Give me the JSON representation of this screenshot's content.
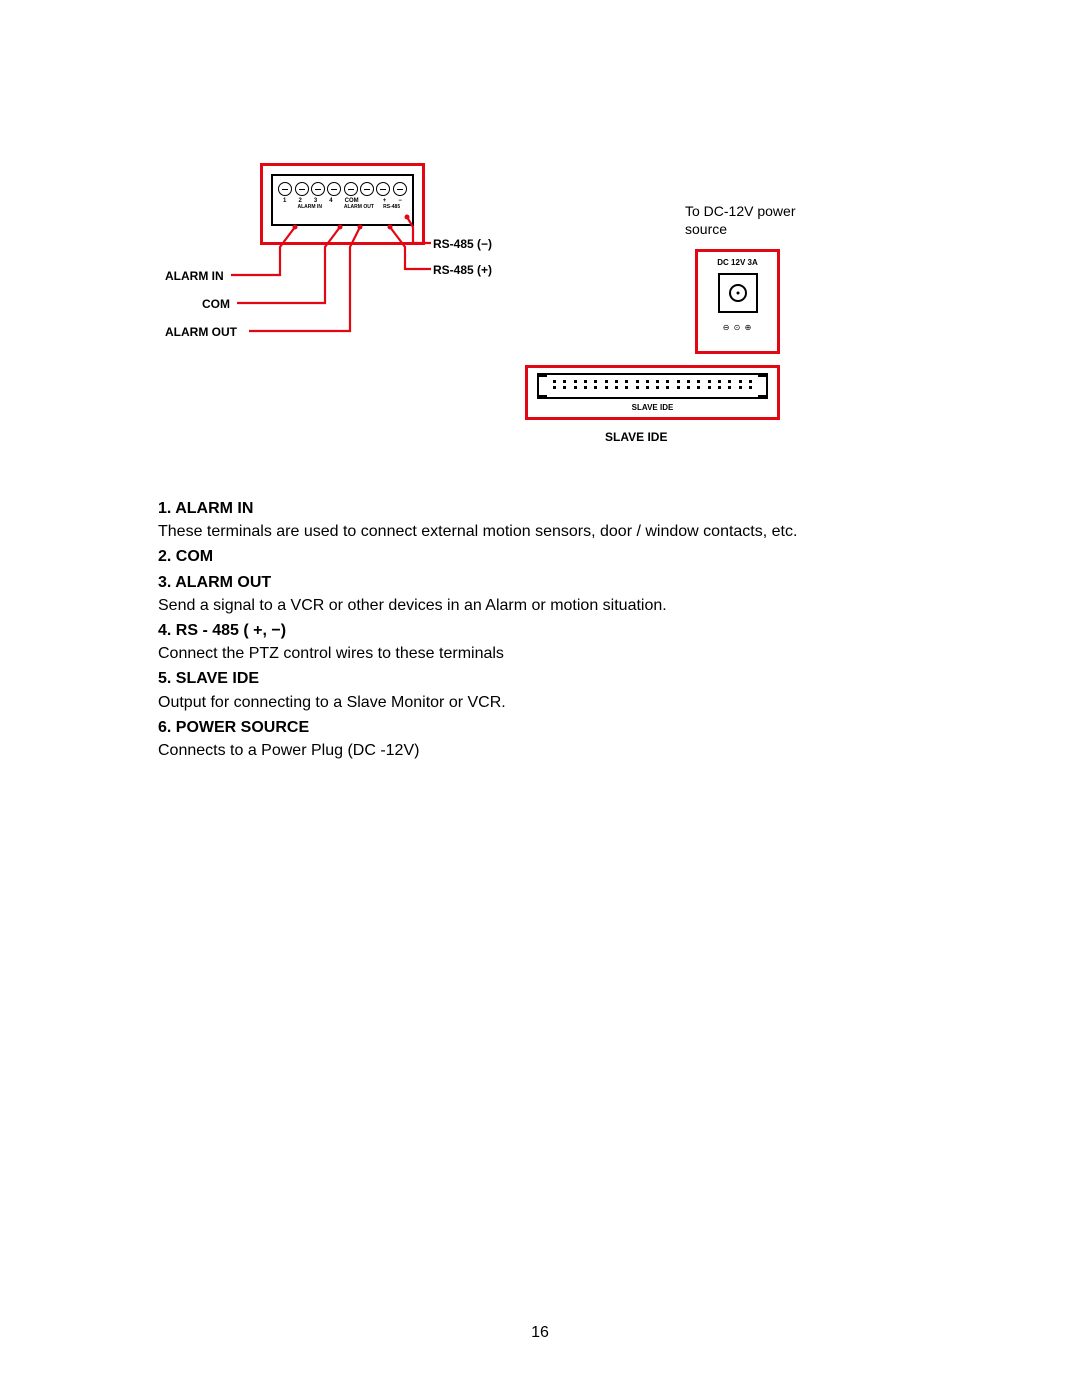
{
  "colors": {
    "red": "#e30613",
    "black": "#000000",
    "white": "#ffffff"
  },
  "diagram": {
    "terminal_block": {
      "pin_labels": [
        "1",
        "2",
        "3",
        "4",
        "COM",
        "",
        "+",
        "−"
      ],
      "group_labels": {
        "alarm_in": "ALARM IN",
        "alarm_out": "ALARM OUT",
        "rs485": "RS-485"
      }
    },
    "callouts": {
      "alarm_in": "ALARM IN",
      "com": "COM",
      "alarm_out": "ALARM OUT",
      "rs485_plus": "RS-485 (+)",
      "rs485_minus": "RS-485 (−)"
    },
    "dc_box": {
      "title": "DC 12V 3A",
      "polarity": "⊖ ⊙ ⊕",
      "note_line1": "To DC-12V power",
      "note_line2": "source"
    },
    "ide_box": {
      "title": "SLAVE IDE",
      "caption": "SLAVE IDE",
      "pins_per_row": 20
    }
  },
  "descriptions": [
    {
      "heading": "1. ALARM IN",
      "body": "These terminals are used to connect external motion sensors, door / window contacts, etc."
    },
    {
      "heading": "2. COM",
      "body": ""
    },
    {
      "heading": "3. ALARM OUT",
      "body": "Send a signal to a VCR or other devices in an Alarm or motion situation."
    },
    {
      "heading": "4. RS - 485 ( +, −)",
      "body": "Connect the PTZ control wires to these terminals"
    },
    {
      "heading": "5. SLAVE IDE",
      "body": "Output for connecting to a Slave Monitor or VCR."
    },
    {
      "heading": "6. POWER SOURCE",
      "body": "Connects to a Power Plug (DC -12V)"
    }
  ],
  "page_number": "16"
}
